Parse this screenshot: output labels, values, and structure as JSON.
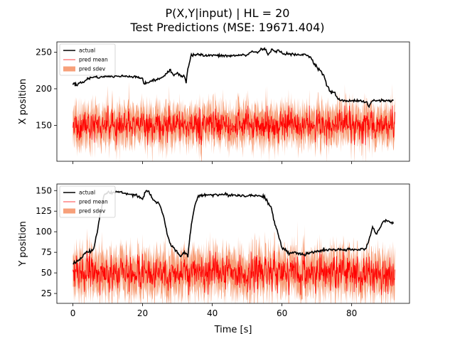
{
  "figure": {
    "title_line1": "P(X,Y|input) | HL = 20",
    "title_line2": "Test Predictions (MSE: 19671.404)"
  },
  "chart_data": [
    {
      "type": "line",
      "ylabel": "X position",
      "xlabel": "",
      "xlim": [
        -4.6,
        96.6
      ],
      "ylim": [
        101,
        264
      ],
      "xticks": [
        0,
        20,
        40,
        60,
        80
      ],
      "show_xticklabels": false,
      "yticks": [
        150,
        200,
        250
      ],
      "legend": {
        "placement": "upper-left",
        "entries": [
          "actual",
          "pred mean",
          "pred sdev"
        ]
      },
      "colors": {
        "actual": "#000000",
        "pred_mean": "#ff0000",
        "pred_sdev": "#f7a07a"
      },
      "series": [
        {
          "name": "actual",
          "x": [
            0,
            0.5,
            1,
            2,
            3,
            4,
            5,
            6,
            8,
            10,
            12,
            15,
            18,
            20,
            20.5,
            21,
            22,
            24,
            26,
            27,
            28,
            29,
            30,
            31,
            32,
            32.5,
            33,
            34,
            36,
            38,
            40,
            42,
            44,
            46,
            48,
            50,
            51,
            52,
            53,
            54,
            55,
            56,
            57,
            58,
            59,
            60,
            61,
            62,
            63,
            64,
            65,
            66,
            67,
            68,
            69,
            70,
            71,
            72,
            73,
            74,
            75,
            76,
            78,
            80,
            82,
            84,
            85,
            86,
            88,
            90,
            91,
            92
          ],
          "y": [
            206,
            208,
            204,
            210,
            208,
            213,
            215,
            216,
            216,
            217,
            217,
            217,
            217,
            214,
            205,
            208,
            210,
            212,
            217,
            221,
            225,
            218,
            222,
            218,
            217,
            210,
            228,
            246,
            247,
            245,
            246,
            245,
            245,
            245,
            246,
            246,
            250,
            251,
            249,
            254,
            255,
            247,
            254,
            250,
            252,
            250,
            247,
            248,
            247,
            246,
            246,
            247,
            246,
            245,
            236,
            230,
            225,
            218,
            203,
            195,
            196,
            186,
            183,
            184,
            184,
            182,
            176,
            184,
            184,
            184,
            183,
            184
          ]
        },
        {
          "name": "pred mean",
          "x_start": 0,
          "x_end": 92.4,
          "y_mean": 150,
          "y_spread": 27
        },
        {
          "name": "pred sdev",
          "x_start": 0,
          "x_end": 92.4,
          "y_mean": 150,
          "y_spread": 45
        }
      ]
    },
    {
      "type": "line",
      "ylabel": "Y position",
      "xlabel": "Time [s]",
      "xlim": [
        -4.6,
        96.6
      ],
      "ylim": [
        13,
        158
      ],
      "xticks": [
        0,
        20,
        40,
        60,
        80
      ],
      "show_xticklabels": true,
      "yticks": [
        25,
        50,
        75,
        100,
        125,
        150
      ],
      "legend": {
        "placement": "upper-left",
        "entries": [
          "actual",
          "pred mean",
          "pred sdev"
        ]
      },
      "colors": {
        "actual": "#000000",
        "pred_mean": "#ff0000",
        "pred_sdev": "#f7a07a"
      },
      "series": [
        {
          "name": "actual",
          "x": [
            0,
            1,
            2,
            3,
            4,
            5,
            6,
            7,
            8,
            9,
            10,
            11,
            12,
            14,
            16,
            18,
            20,
            21,
            22,
            23,
            24,
            25,
            26,
            27,
            28,
            29,
            30,
            31,
            32,
            33,
            34,
            35,
            36,
            38,
            40,
            44,
            48,
            52,
            55,
            56,
            57,
            58,
            59,
            60,
            61,
            62,
            64,
            66,
            68,
            70,
            72,
            76,
            80,
            82,
            84,
            85,
            86,
            87,
            88,
            89,
            90,
            91,
            92
          ],
          "y": [
            62,
            63,
            66,
            72,
            76,
            76,
            80,
            100,
            125,
            145,
            148,
            147,
            148,
            148,
            146,
            145,
            140,
            150,
            148,
            139,
            136,
            132,
            119,
            98,
            85,
            80,
            74,
            70,
            75,
            70,
            110,
            132,
            143,
            145,
            145,
            145,
            144,
            144,
            143,
            135,
            128,
            108,
            96,
            80,
            78,
            74,
            75,
            72,
            74,
            76,
            78,
            78,
            78,
            78,
            80,
            90,
            105,
            98,
            103,
            113,
            114,
            112,
            110
          ]
        },
        {
          "name": "pred mean",
          "x_start": 0,
          "x_end": 92.4,
          "y_mean": 50,
          "y_spread": 27
        },
        {
          "name": "pred sdev",
          "x_start": 0,
          "x_end": 92.4,
          "y_mean": 50,
          "y_spread": 45
        }
      ]
    }
  ]
}
